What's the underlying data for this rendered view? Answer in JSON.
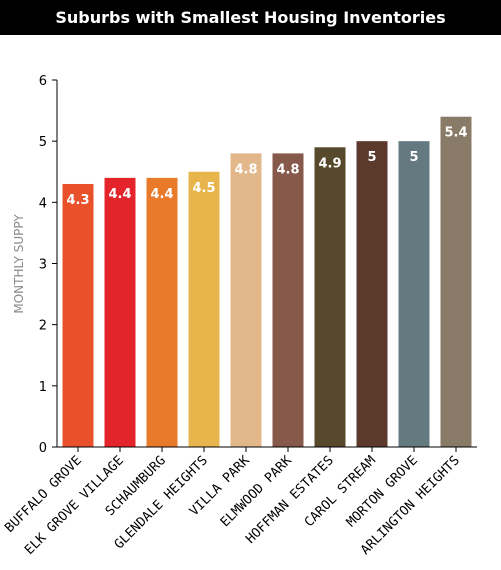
{
  "chart_data": {
    "type": "bar",
    "title": "Suburbs with Smallest Housing Inventories",
    "ylabel": "MONTHLY SUPPY",
    "xlabel": "",
    "ylim": [
      0,
      6
    ],
    "yticks": [
      0,
      1,
      2,
      3,
      4,
      5,
      6
    ],
    "grid": false,
    "categories": [
      "BUFFALO GROVE",
      "ELK GROVE VILLAGE",
      "SCHAUMBURG",
      "GLENDALE HEIGHTS",
      "VILLA PARK",
      "ELMWOOD PARK",
      "HOFFMAN ESTATES",
      "CAROL STREAM",
      "MORTON GROVE",
      "ARLINGTON HEIGHTS"
    ],
    "values": [
      4.3,
      4.4,
      4.4,
      4.5,
      4.8,
      4.8,
      4.9,
      5,
      5,
      5.4
    ],
    "value_labels": [
      "4.3",
      "4.4",
      "4.4",
      "4.5",
      "4.8",
      "4.8",
      "4.9",
      "5",
      "5",
      "5.4"
    ],
    "colors": [
      "#e8512a",
      "#e3242b",
      "#e87a2a",
      "#e8b54c",
      "#e2b88a",
      "#86594a",
      "#57492b",
      "#5b3a2c",
      "#647a80",
      "#8a7b68"
    ]
  }
}
